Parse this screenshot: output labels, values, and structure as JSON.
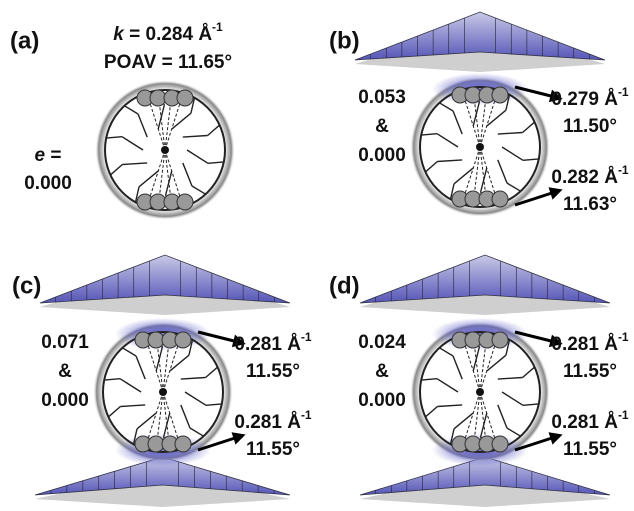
{
  "panels": [
    {
      "label": "(a)",
      "curvature": {
        "symbol": "k",
        "text": "= 0.284 Å",
        "sup": "-1"
      },
      "poav": "POAV = 11.65°",
      "eccentricity": {
        "symbol": "e",
        "text": "=",
        "value": "0.000"
      }
    },
    {
      "label": "(b)",
      "eccentricity": [
        "0.053",
        "&",
        "0.000"
      ],
      "top": {
        "k": "0.279 Å",
        "sup": "-1",
        "poav": "11.50°"
      },
      "bottom": {
        "k": "0.282 Å",
        "sup": "-1",
        "poav": "11.63°"
      }
    },
    {
      "label": "(c)",
      "eccentricity": [
        "0.071",
        "&",
        "0.000"
      ],
      "top": {
        "k": "0.281 Å",
        "sup": "-1",
        "poav": "11.55°"
      },
      "bottom": {
        "k": "0.281 Å",
        "sup": "-1",
        "poav": "11.55°"
      }
    },
    {
      "label": "(d)",
      "eccentricity": [
        "0.024",
        "&",
        "0.000"
      ],
      "top": {
        "k": "0.281 Å",
        "sup": "-1",
        "poav": "11.55°"
      },
      "bottom": {
        "k": "0.281 Å",
        "sup": "-1",
        "poav": "11.55°"
      }
    }
  ]
}
